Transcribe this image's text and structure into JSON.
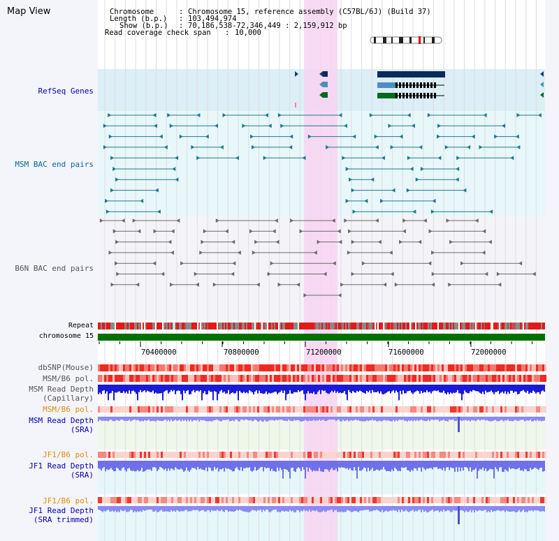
{
  "title": "Map View",
  "info": {
    "chromosome_label": "Chromosome",
    "chromosome_value": "Chromosome 15, reference assembly (C57BL/6J) (Build 37)",
    "length_label": "Length (b.p.)",
    "length_value": "103,494,974",
    "show_label": "Show (b.p.)",
    "show_value": "70,186,538-72,346,449 : 2,159,912 bp",
    "coverage_label": "Read coverage check span",
    "coverage_value": "10,000"
  },
  "tracks": {
    "refseq": "RefSeq Genes",
    "msm_bac": "MSM BAC end pairs",
    "b6n_bac": "B6N BAC end pairs",
    "repeat": "Repeat",
    "chromosome": "chromosome 15",
    "dbsnp": "dbSNP(Mouse)",
    "msm_b6_pol_1": "MSM/B6 pol.",
    "msm_read_cap_1": "MSM Read Depth",
    "msm_read_cap_2": "(Capillary)",
    "msm_b6_pol_2": "MSM/B6 pol.",
    "msm_read_sra_1": "MSM Read Depth",
    "msm_read_sra_2": "(SRA)",
    "jf1_b6_pol_1": "JF1/B6 pol.",
    "jf1_read_sra_1": "JF1 Read Depth",
    "jf1_read_sra_2": "(SRA)",
    "jf1_b6_pol_2": "JF1/B6 pol.",
    "jf1_read_trim_1": "JF1 Read Depth",
    "jf1_read_trim_2": "(SRA trimmed)"
  },
  "axis": {
    "ticks": [
      "70400000",
      "70800000",
      "71200000",
      "71600000",
      "72000000"
    ]
  },
  "colors": {
    "label_blue": "#0000aa",
    "label_teal": "#006a9e",
    "label_gray": "#555555",
    "label_orange": "#d8900a",
    "highlight": "#f6d8f4",
    "chrom_bar": "#007000"
  }
}
